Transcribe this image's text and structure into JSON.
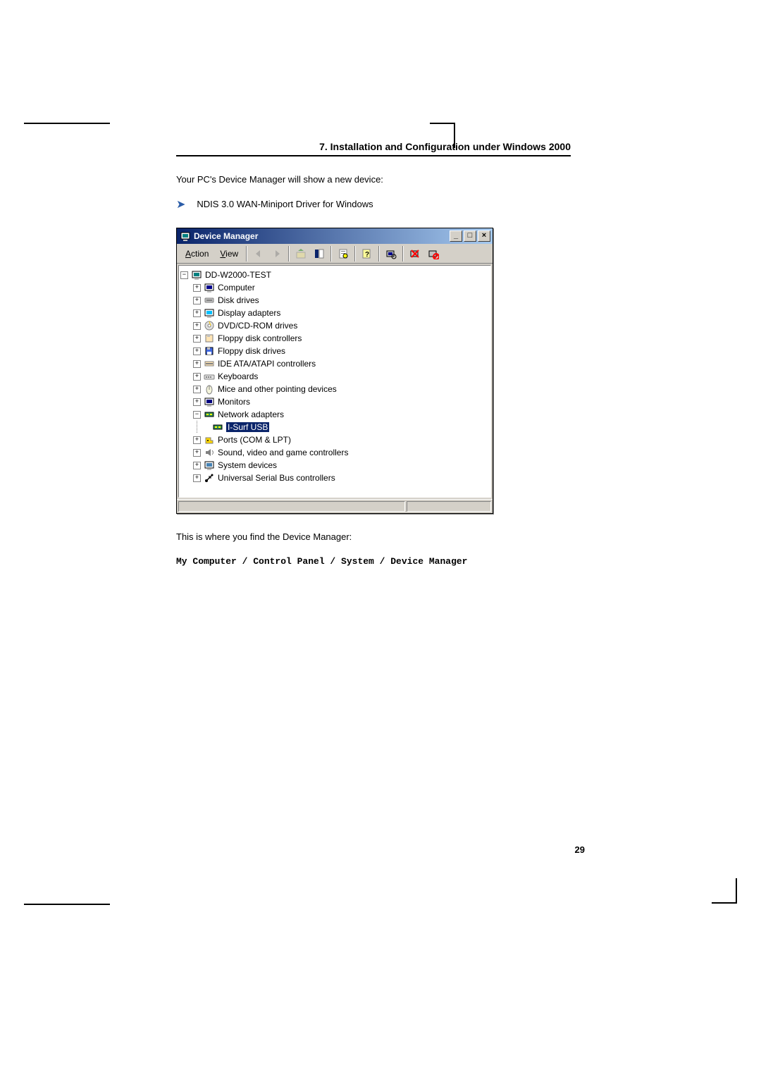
{
  "chapter_heading": "7. Installation and Configuration under Windows 2000",
  "intro_text": "Your PC's Device Manager will show a new device:",
  "bullet_text": "NDIS 3.0 WAN-Miniport Driver for Windows",
  "footer_text": "This is where you find the Device Manager:",
  "path_text": "My Computer / Control Panel / System / Device Manager",
  "page_number": "29",
  "window": {
    "title": "Device Manager",
    "menu": {
      "action": "Action",
      "view": "View"
    },
    "tree": {
      "root": "DD-W2000-TEST",
      "items": [
        {
          "label": "Computer",
          "icon": "computer"
        },
        {
          "label": "Disk drives",
          "icon": "disk"
        },
        {
          "label": "Display adapters",
          "icon": "display"
        },
        {
          "label": "DVD/CD-ROM drives",
          "icon": "cdrom"
        },
        {
          "label": "Floppy disk controllers",
          "icon": "floppy-ctrl"
        },
        {
          "label": "Floppy disk drives",
          "icon": "floppy"
        },
        {
          "label": "IDE ATA/ATAPI controllers",
          "icon": "ide"
        },
        {
          "label": "Keyboards",
          "icon": "keyboard"
        },
        {
          "label": "Mice and other pointing devices",
          "icon": "mouse"
        },
        {
          "label": "Monitors",
          "icon": "monitor"
        },
        {
          "label": "Network adapters",
          "icon": "network",
          "expanded": true,
          "children": [
            {
              "label": "I-Surf USB",
              "icon": "nic",
              "selected": true
            }
          ]
        },
        {
          "label": "Ports (COM & LPT)",
          "icon": "ports"
        },
        {
          "label": "Sound, video and game controllers",
          "icon": "sound"
        },
        {
          "label": "System devices",
          "icon": "system"
        },
        {
          "label": "Universal Serial Bus controllers",
          "icon": "usb"
        }
      ]
    }
  }
}
